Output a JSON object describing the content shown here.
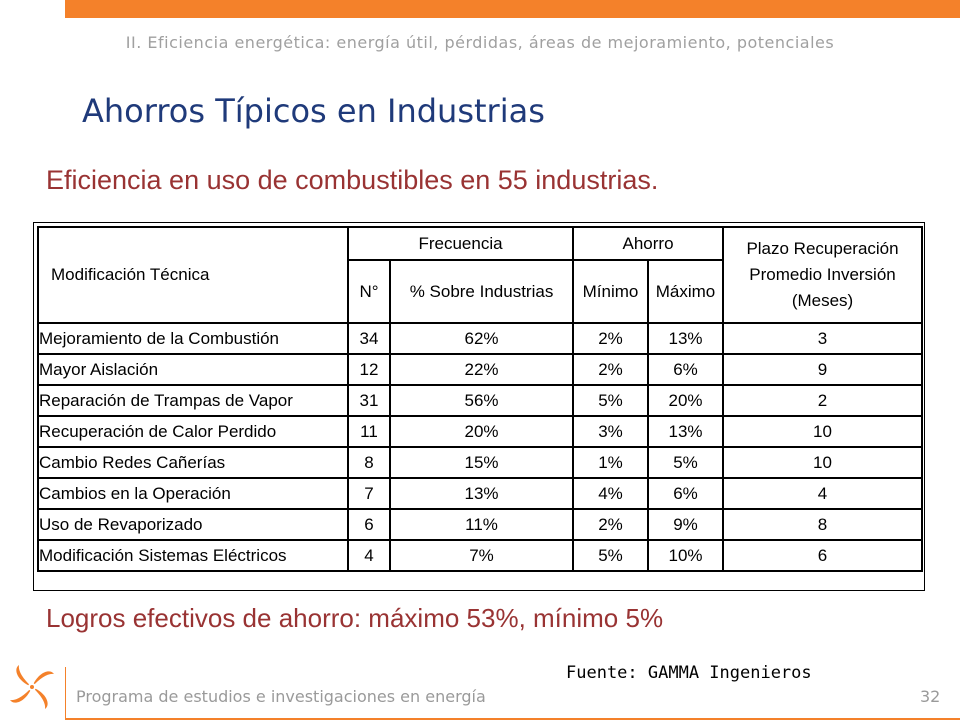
{
  "header": {
    "section_title": "II. Eficiencia energética: energía útil, pérdidas, áreas de mejoramiento, potenciales",
    "slide_title": "Ahorros Típicos en Industrias",
    "subtitle": "Eficiencia en uso de combustibles en 55 industrias."
  },
  "table": {
    "col_modificacion": "Modificación Técnica",
    "group_frecuencia": "Frecuencia",
    "group_ahorro": "Ahorro",
    "col_plazo_line1": "Plazo Recuperación",
    "col_plazo_line2": "Promedio Inversión",
    "col_plazo_line3": "(Meses)",
    "col_n": "N°",
    "col_pct": "% Sobre Industrias",
    "col_min": "Mínimo",
    "col_max": "Máximo",
    "rows": [
      {
        "name": "Mejoramiento de la Combustión",
        "n": "34",
        "pct": "62%",
        "min": "2%",
        "max": "13%",
        "plazo": "3"
      },
      {
        "name": "Mayor Aislación",
        "n": "12",
        "pct": "22%",
        "min": "2%",
        "max": "6%",
        "plazo": "9"
      },
      {
        "name": "Reparación de Trampas de Vapor",
        "n": "31",
        "pct": "56%",
        "min": "5%",
        "max": "20%",
        "plazo": "2"
      },
      {
        "name": "Recuperación de Calor Perdido",
        "n": "11",
        "pct": "20%",
        "min": "3%",
        "max": "13%",
        "plazo": "10"
      },
      {
        "name": "Cambio Redes Cañerías",
        "n": "8",
        "pct": "15%",
        "min": "1%",
        "max": "5%",
        "plazo": "10"
      },
      {
        "name": "Cambios en la Operación",
        "n": "7",
        "pct": "13%",
        "min": "4%",
        "max": "6%",
        "plazo": "4"
      },
      {
        "name": "Uso de Revaporizado",
        "n": "6",
        "pct": "11%",
        "min": "2%",
        "max": "9%",
        "plazo": "8"
      },
      {
        "name": "Modificación Sistemas Eléctricos",
        "n": "4",
        "pct": "7%",
        "min": "5%",
        "max": "10%",
        "plazo": "6"
      }
    ]
  },
  "conclusion": "Logros efectivos de ahorro: máximo 53%, mínimo 5%",
  "source": "Fuente: GAMMA Ingenieros",
  "footer": {
    "program": "Programa de estudios e investigaciones en energía",
    "page_number": "32"
  },
  "colors": {
    "accent_orange": "#F4812A",
    "title_blue": "#1F3A7A",
    "text_red": "#993333"
  },
  "logo_icon": "pinwheel-logo-icon"
}
